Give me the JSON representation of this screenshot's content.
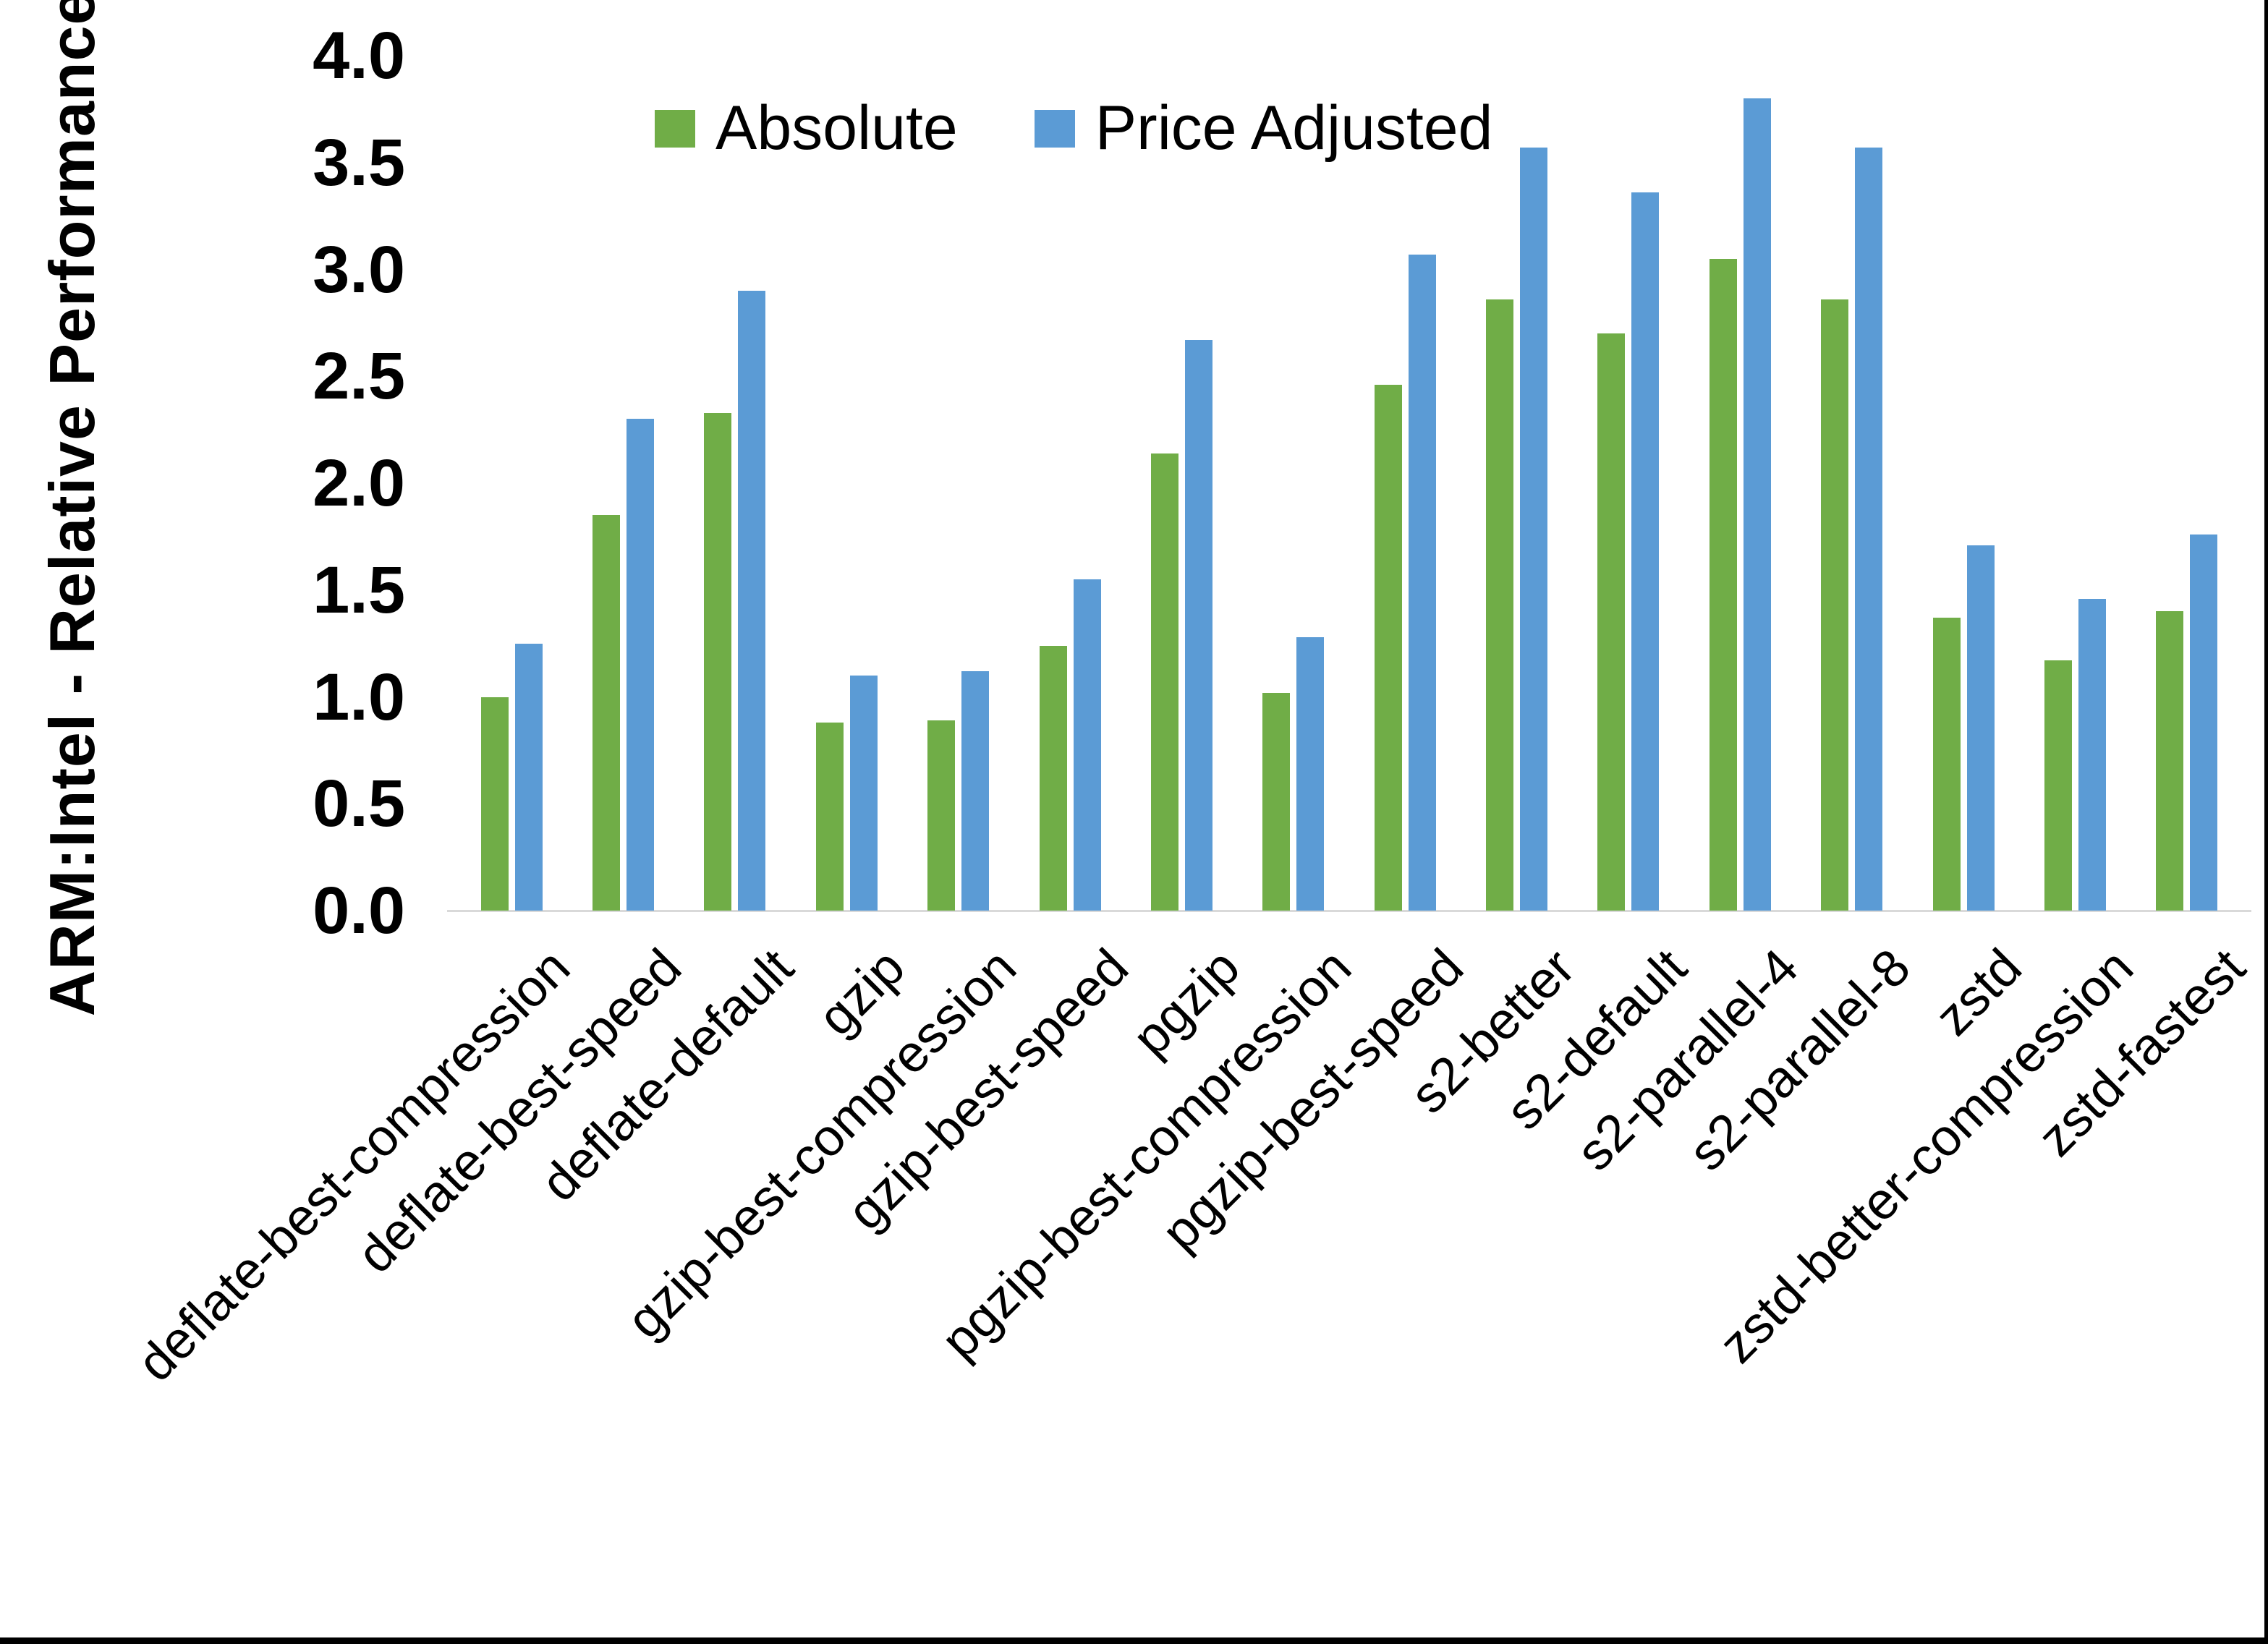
{
  "page": {
    "background": "#ffffff",
    "border_bottom_color": "#000000",
    "border_right_color": "#000000"
  },
  "y_axis": {
    "title": "ARM:Intel - Relative Performance",
    "tick_labels": [
      "0.0",
      "0.5",
      "1.0",
      "1.5",
      "2.0",
      "2.5",
      "3.0",
      "3.5",
      "4.0"
    ]
  },
  "chart_data": {
    "type": "bar",
    "title": "",
    "xlabel": "",
    "ylabel": "ARM:Intel - Relative Performance",
    "ylim": [
      0,
      4.0
    ],
    "ytick_step": 0.5,
    "grid": false,
    "legend_position": "top-center",
    "categories": [
      "deflate-best-compression",
      "deflate-best-speed",
      "deflate-default",
      "gzip",
      "gzip-best-compression",
      "gzip-best-speed",
      "pgzip",
      "pgzip-best-compression",
      "pgzip-best-speed",
      "s2-better",
      "s2-default",
      "s2-parallel-4",
      "s2-parallel-8",
      "zstd",
      "zstd-better-compression",
      "zstd-fastest"
    ],
    "series": [
      {
        "name": "Absolute",
        "color": "#70AD47",
        "values": [
          1.0,
          1.85,
          2.33,
          0.88,
          0.89,
          1.24,
          2.14,
          1.02,
          2.46,
          2.86,
          2.7,
          3.05,
          2.86,
          1.37,
          1.17,
          1.4
        ]
      },
      {
        "name": "Price Adjusted",
        "color": "#5B9BD5",
        "values": [
          1.25,
          2.3,
          2.9,
          1.1,
          1.12,
          1.55,
          2.67,
          1.28,
          3.07,
          3.57,
          3.36,
          3.8,
          3.57,
          1.71,
          1.46,
          1.76
        ]
      }
    ]
  }
}
